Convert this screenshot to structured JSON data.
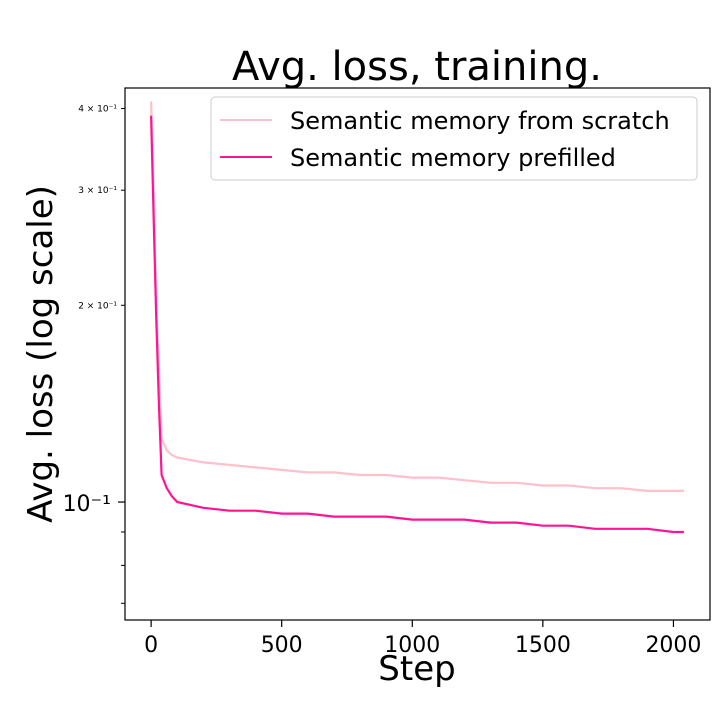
{
  "chart_data": {
    "type": "line",
    "title": "Avg. loss, training.",
    "xlabel": "Step",
    "ylabel": "Avg. loss (log scale)",
    "yscale": "log",
    "xlim": [
      -100,
      2140
    ],
    "ylim": [
      0.066,
      0.43
    ],
    "grid": false,
    "legend_position": "top-right",
    "x_ticks": [
      0,
      500,
      1000,
      1500,
      2000
    ],
    "x_tick_labels": [
      "0",
      "500",
      "1000",
      "1500",
      "2000"
    ],
    "y_major_ticks": [
      0.1
    ],
    "y_major_tick_labels": [
      "10⁻¹"
    ],
    "y_minor_ticks": [
      0.07,
      0.08,
      0.09,
      0.2,
      0.3,
      0.4
    ],
    "y_minor_tick_labels": [
      "",
      "",
      "",
      "2 × 10⁻¹",
      "3 × 10⁻¹",
      "4 × 10⁻¹"
    ],
    "series": [
      {
        "name": "Semantic memory from scratch",
        "color": "#ffc0cb",
        "x": [
          0,
          10,
          20,
          30,
          40,
          60,
          80,
          100,
          150,
          200,
          300,
          400,
          500,
          600,
          700,
          800,
          900,
          1000,
          1100,
          1200,
          1300,
          1400,
          1500,
          1600,
          1700,
          1800,
          1900,
          2000,
          2040
        ],
        "y": [
          0.41,
          0.3,
          0.2,
          0.16,
          0.125,
          0.12,
          0.118,
          0.117,
          0.116,
          0.115,
          0.114,
          0.113,
          0.112,
          0.111,
          0.111,
          0.11,
          0.11,
          0.109,
          0.109,
          0.108,
          0.107,
          0.107,
          0.106,
          0.106,
          0.105,
          0.105,
          0.104,
          0.104,
          0.104
        ]
      },
      {
        "name": "Semantic memory prefilled",
        "color": "#ff1493",
        "x": [
          0,
          10,
          20,
          30,
          40,
          60,
          80,
          100,
          150,
          200,
          300,
          400,
          500,
          600,
          700,
          800,
          900,
          1000,
          1100,
          1200,
          1300,
          1400,
          1500,
          1600,
          1700,
          1800,
          1900,
          2000,
          2040
        ],
        "y": [
          0.39,
          0.27,
          0.19,
          0.14,
          0.11,
          0.105,
          0.102,
          0.1,
          0.099,
          0.098,
          0.097,
          0.097,
          0.096,
          0.096,
          0.095,
          0.095,
          0.095,
          0.094,
          0.094,
          0.094,
          0.093,
          0.093,
          0.092,
          0.092,
          0.091,
          0.091,
          0.091,
          0.09,
          0.09
        ]
      }
    ]
  }
}
